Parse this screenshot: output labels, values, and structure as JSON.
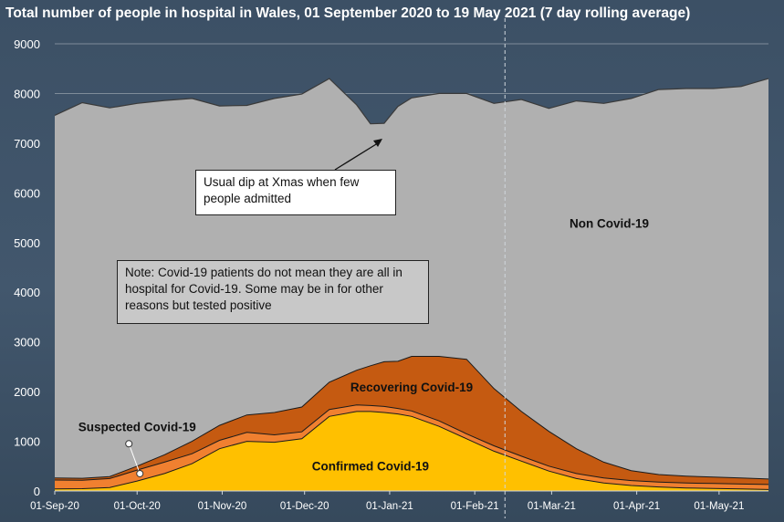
{
  "title": "Total number of people in hospital in Wales, 01 September 2020 to 19 May 2021 (7 day rolling average)",
  "annotations": {
    "xmas_dip": "Usual dip at Xmas when few people admitted",
    "note": "Note: Covid-19 patients do not mean they are all in hospital for Covid-19. Some may be in for other reasons but tested positive"
  },
  "colors": {
    "non_covid": "#b0b0b0",
    "recovering": "#c55a11",
    "suspected": "#f08030",
    "confirmed": "#ffc000",
    "background": "#3d5166"
  },
  "chart_data": {
    "type": "area",
    "title": "Total number of people in hospital in Wales, 01 September 2020 to 19 May 2021 (7 day rolling average)",
    "stacked": true,
    "x_unit": "days since 01-Sep-20",
    "ylim": [
      0,
      9000
    ],
    "yticks": [
      0,
      1000,
      2000,
      3000,
      4000,
      5000,
      6000,
      7000,
      8000,
      9000
    ],
    "xticks": [
      {
        "x": 0,
        "label": "01-Sep-20"
      },
      {
        "x": 30,
        "label": "01-Oct-20"
      },
      {
        "x": 61,
        "label": "01-Nov-20"
      },
      {
        "x": 91,
        "label": "01-Dec-20"
      },
      {
        "x": 122,
        "label": "01-Jan-21"
      },
      {
        "x": 153,
        "label": "01-Feb-21"
      },
      {
        "x": 181,
        "label": "01-Mar-21"
      },
      {
        "x": 212,
        "label": "01-Apr-21"
      },
      {
        "x": 242,
        "label": "01-May-21"
      }
    ],
    "x": [
      0,
      10,
      20,
      30,
      40,
      50,
      60,
      70,
      80,
      90,
      100,
      110,
      115,
      120,
      125,
      130,
      140,
      150,
      160,
      170,
      180,
      190,
      200,
      210,
      220,
      230,
      240,
      250,
      260
    ],
    "series": [
      {
        "name": "Confirmed Covid-19",
        "label": "Confirmed Covid-19",
        "values": [
          40,
          45,
          70,
          200,
          350,
          550,
          850,
          1000,
          980,
          1050,
          1500,
          1600,
          1600,
          1580,
          1550,
          1500,
          1300,
          1050,
          800,
          600,
          400,
          250,
          160,
          110,
          80,
          60,
          50,
          40,
          30
        ]
      },
      {
        "name": "Suspected Covid-19",
        "label": "Suspected Covid-19",
        "values": [
          180,
          170,
          180,
          220,
          230,
          200,
          170,
          180,
          150,
          140,
          140,
          130,
          120,
          120,
          110,
          110,
          110,
          100,
          110,
          100,
          100,
          100,
          100,
          100,
          100,
          100,
          100,
          100,
          100
        ]
      },
      {
        "name": "Recovering Covid-19",
        "label": "Recovering Covid-19",
        "values": [
          40,
          40,
          40,
          80,
          150,
          250,
          300,
          350,
          450,
          500,
          550,
          700,
          800,
          900,
          950,
          1100,
          1300,
          1500,
          1150,
          900,
          700,
          500,
          320,
          200,
          150,
          140,
          130,
          120,
          110
        ]
      },
      {
        "name": "Non Covid-19",
        "label": "Non Covid-19",
        "values": [
          7300,
          7560,
          7420,
          7300,
          7130,
          6900,
          6430,
          6230,
          6320,
          6300,
          6110,
          5340,
          4870,
          4800,
          5130,
          5200,
          5290,
          5350,
          5740,
          6280,
          6500,
          7000,
          7220,
          7490,
          7750,
          7800,
          7820,
          7880,
          8060
        ]
      }
    ],
    "vline_x": 164,
    "xlabel": "",
    "ylabel": ""
  }
}
